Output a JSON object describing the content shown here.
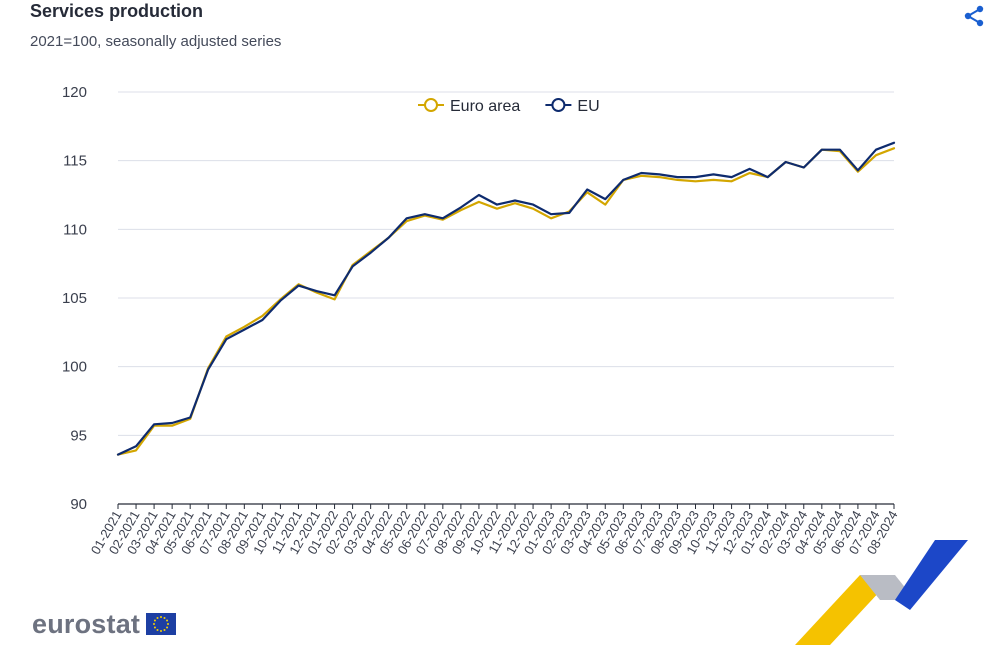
{
  "header": {
    "title": "Services production",
    "subtitle": "2021=100, seasonally adjusted series",
    "share_icon": "share-icon"
  },
  "footer": {
    "logo_text": "eurostat",
    "flag_icon": "eu-flag-icon"
  },
  "colors": {
    "euro_area": "#d3a600",
    "eu": "#0e2b6e",
    "grid": "#dcdfe8",
    "axis": "#262b38"
  },
  "chart_data": {
    "type": "line",
    "title": "Services production",
    "subtitle": "2021=100, seasonally adjusted series",
    "xlabel": "",
    "ylabel": "",
    "ylim": [
      90,
      120
    ],
    "yticks": [
      90,
      95,
      100,
      105,
      110,
      115,
      120
    ],
    "grid": true,
    "legend_position": "top-center",
    "x": [
      "01-2021",
      "02-2021",
      "03-2021",
      "04-2021",
      "05-2021",
      "06-2021",
      "07-2021",
      "08-2021",
      "09-2021",
      "10-2021",
      "11-2021",
      "12-2021",
      "01-2022",
      "02-2022",
      "03-2022",
      "04-2022",
      "05-2022",
      "06-2022",
      "07-2022",
      "08-2022",
      "09-2022",
      "10-2022",
      "11-2022",
      "12-2022",
      "01-2023",
      "02-2023",
      "03-2023",
      "04-2023",
      "05-2023",
      "06-2023",
      "07-2023",
      "08-2023",
      "09-2023",
      "10-2023",
      "11-2023",
      "12-2023",
      "01-2024",
      "02-2024",
      "03-2024",
      "04-2024",
      "05-2024",
      "06-2024",
      "07-2024",
      "08-2024"
    ],
    "series": [
      {
        "name": "Euro area",
        "color": "#d3a600",
        "values": [
          93.6,
          93.9,
          95.7,
          95.7,
          96.2,
          99.9,
          102.2,
          102.9,
          103.7,
          104.9,
          106.0,
          105.4,
          104.9,
          107.4,
          108.4,
          109.4,
          110.6,
          111.0,
          110.7,
          111.4,
          112.0,
          111.5,
          111.9,
          111.5,
          110.8,
          111.3,
          112.7,
          111.8,
          113.6,
          113.9,
          113.8,
          113.6,
          113.5,
          113.6,
          113.5,
          114.1,
          113.8,
          114.9,
          114.5,
          115.8,
          115.7,
          114.2,
          115.4,
          115.9
        ]
      },
      {
        "name": "EU",
        "color": "#0e2b6e",
        "values": [
          93.6,
          94.2,
          95.8,
          95.9,
          96.3,
          99.8,
          102.0,
          102.7,
          103.4,
          104.8,
          105.9,
          105.5,
          105.2,
          107.3,
          108.3,
          109.4,
          110.8,
          111.1,
          110.8,
          111.6,
          112.5,
          111.8,
          112.1,
          111.8,
          111.1,
          111.2,
          112.9,
          112.2,
          113.6,
          114.1,
          114.0,
          113.8,
          113.8,
          114.0,
          113.8,
          114.4,
          113.8,
          114.9,
          114.5,
          115.8,
          115.8,
          114.3,
          115.8,
          116.3
        ]
      }
    ]
  }
}
